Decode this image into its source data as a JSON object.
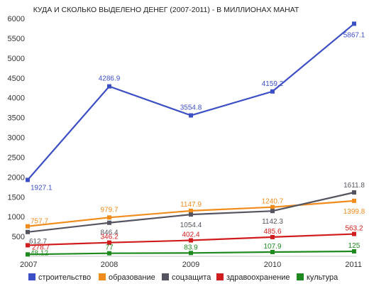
{
  "chart_data": {
    "type": "line",
    "title": "КУДА И СКОЛЬКО ВЫДЕЛЕНО ДЕНЕГ (2007-2011)  - В МИЛЛИОНАХ МАНАТ",
    "xlabel": "",
    "ylabel": "",
    "categories": [
      "2007",
      "2008",
      "2009",
      "2010",
      "2011"
    ],
    "ylim": [
      0,
      6000
    ],
    "yticks": [
      500,
      1000,
      1500,
      2000,
      2500,
      3000,
      3500,
      4000,
      4500,
      5000,
      5500,
      6000
    ],
    "grid": false,
    "legend_position": "bottom",
    "series": [
      {
        "name": "строительство",
        "color": "#3d4fc4",
        "values": [
          1927.1,
          4286.9,
          3554.8,
          4159.2,
          5867.1
        ],
        "labels": [
          "1927.1",
          "4286.9",
          "3554.8",
          "4159.2",
          "5867.1"
        ]
      },
      {
        "name": "образование",
        "color": "#f08c1c",
        "values": [
          757.7,
          979.7,
          1147.9,
          1240.7,
          1399.8
        ],
        "labels": [
          "757.7",
          "979.7",
          "1147.9",
          "1240.7",
          "1399.8"
        ]
      },
      {
        "name": "соцзащита",
        "color": "#555561",
        "values": [
          612.7,
          846.4,
          1054.4,
          1142.3,
          1611.8
        ],
        "labels": [
          "612.7",
          "846.4",
          "1054.4",
          "1142.3",
          "1611.8"
        ]
      },
      {
        "name": "здравоохранение",
        "color": "#d01c1c",
        "values": [
          278.7,
          346.2,
          402.4,
          485.6,
          563.2
        ],
        "labels": [
          "278.7",
          "346.2",
          "402.4",
          "485.6",
          "563.2"
        ]
      },
      {
        "name": "культура",
        "color": "#1e8a1e",
        "values": [
          48.12,
          77,
          83.9,
          107.9,
          125
        ],
        "labels": [
          "48.12",
          "77",
          "83.9",
          "107.9",
          "125"
        ]
      }
    ]
  }
}
